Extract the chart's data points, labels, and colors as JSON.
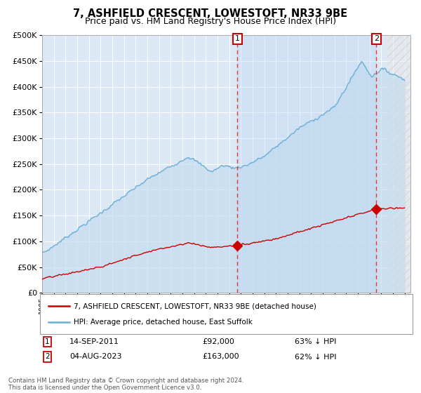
{
  "title": "7, ASHFIELD CRESCENT, LOWESTOFT, NR33 9BE",
  "subtitle": "Price paid vs. HM Land Registry's House Price Index (HPI)",
  "legend_line1": "7, ASHFIELD CRESCENT, LOWESTOFT, NR33 9BE (detached house)",
  "legend_line2": "HPI: Average price, detached house, East Suffolk",
  "marker1_date": "14-SEP-2011",
  "marker1_price": "£92,000",
  "marker1_hpi": "63% ↓ HPI",
  "marker1_x": 2011.71,
  "marker1_y": 92000,
  "marker2_date": "04-AUG-2023",
  "marker2_price": "£163,000",
  "marker2_hpi": "62% ↓ HPI",
  "marker2_x": 2023.58,
  "marker2_y": 163000,
  "hpi_color": "#6baed6",
  "hpi_fill_color": "#c6dcef",
  "price_color": "#cc0000",
  "dashed_line_color": "#ee3333",
  "background_color": "#ffffff",
  "plot_bg_color": "#dce9f5",
  "ylim": [
    0,
    500000
  ],
  "xlim": [
    1995.0,
    2026.5
  ],
  "yticks": [
    0,
    50000,
    100000,
    150000,
    200000,
    250000,
    300000,
    350000,
    400000,
    450000,
    500000
  ],
  "xticks": [
    1995,
    1996,
    1997,
    1998,
    1999,
    2000,
    2001,
    2002,
    2003,
    2004,
    2005,
    2006,
    2007,
    2008,
    2009,
    2010,
    2011,
    2012,
    2013,
    2014,
    2015,
    2016,
    2017,
    2018,
    2019,
    2020,
    2021,
    2022,
    2023,
    2024,
    2025,
    2026
  ],
  "footer": "Contains HM Land Registry data © Crown copyright and database right 2024.\nThis data is licensed under the Open Government Licence v3.0."
}
